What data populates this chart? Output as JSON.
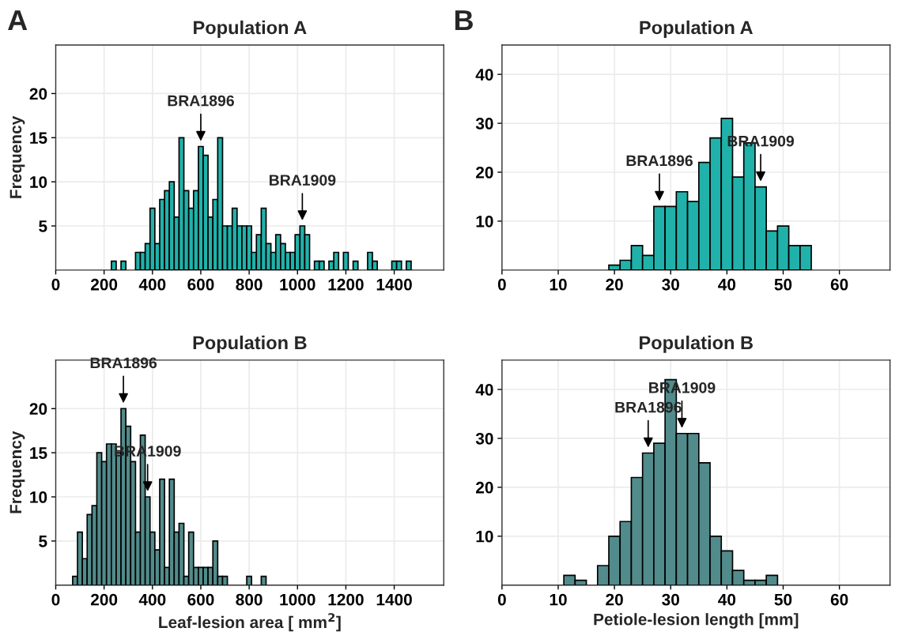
{
  "chart_data": [
    {
      "type": "histogram",
      "title": "Population A",
      "ylabel": "Frequency",
      "color": "#20b2aa",
      "bins": [
        230,
        250,
        270,
        290,
        310,
        330,
        350,
        370,
        390,
        410,
        430,
        450,
        470,
        490,
        510,
        530,
        550,
        570,
        590,
        610,
        630,
        650,
        670,
        690,
        710,
        730,
        750,
        770,
        790,
        810,
        830,
        850,
        870,
        890,
        910,
        930,
        950,
        970,
        990,
        1010,
        1030,
        1050,
        1070,
        1090,
        1110,
        1130,
        1150,
        1170,
        1190,
        1210,
        1230,
        1250,
        1270,
        1290,
        1310,
        1330,
        1350,
        1370,
        1390,
        1410,
        1430,
        1450,
        1470
      ],
      "values": [
        1,
        0,
        1,
        0,
        0,
        2,
        2,
        3,
        7,
        3,
        8,
        9,
        10,
        6,
        15,
        9,
        7,
        9,
        14,
        13,
        6,
        8,
        15,
        5,
        5,
        7,
        5,
        5,
        5,
        2,
        4,
        7,
        3,
        2,
        4,
        3,
        2,
        2,
        4,
        5,
        4,
        0,
        1,
        1,
        0,
        1,
        2,
        0,
        2,
        0,
        1,
        0,
        0,
        2,
        1,
        0,
        0,
        0,
        1,
        1,
        0,
        1
      ],
      "xlim": [
        0,
        1605
      ],
      "ylim": [
        0,
        25.5
      ],
      "xticks": [
        0,
        200,
        400,
        600,
        800,
        1000,
        1200,
        1400
      ],
      "yticks": [
        5,
        10,
        15,
        20
      ],
      "grid": true,
      "annotations": [
        "A",
        {
          "text": "BRA1896",
          "x": 600,
          "y": 14
        },
        {
          "text": "BRA1909",
          "x": 1020,
          "y": 5
        }
      ]
    },
    {
      "type": "histogram",
      "title": "Population A",
      "color": "#20b2aa",
      "bins": [
        19,
        21,
        23,
        25,
        27,
        29,
        31,
        33,
        35,
        37,
        39,
        41,
        43,
        45,
        47,
        49,
        51,
        53,
        55
      ],
      "values": [
        1,
        2,
        5,
        3,
        13,
        13,
        16,
        14,
        22,
        27,
        31,
        19,
        26,
        17,
        8,
        9,
        5,
        5
      ],
      "xlim": [
        0,
        69
      ],
      "ylim": [
        0,
        46
      ],
      "xticks": [
        0,
        10,
        20,
        30,
        40,
        50,
        60
      ],
      "yticks": [
        10,
        20,
        30,
        40
      ],
      "grid": true,
      "annotations": [
        "B",
        {
          "text": "BRA1896",
          "x": 28,
          "y": 13
        },
        {
          "text": "BRA1909",
          "x": 46,
          "y": 17
        }
      ]
    },
    {
      "type": "histogram",
      "title": "Population B",
      "ylabel": "Frequency",
      "xlabel": "Leaf-lesion area [ mm$^{2}$]",
      "color": "#528b8b",
      "bins": [
        70,
        90,
        110,
        130,
        150,
        170,
        190,
        210,
        230,
        250,
        270,
        290,
        310,
        330,
        350,
        370,
        390,
        410,
        430,
        450,
        470,
        490,
        510,
        530,
        550,
        570,
        590,
        610,
        630,
        650,
        670,
        690,
        710,
        730,
        750,
        770,
        790,
        810,
        830,
        850,
        870
      ],
      "values": [
        1,
        6,
        3,
        8,
        9,
        15,
        14,
        16,
        16,
        15,
        20,
        18,
        14,
        6,
        17,
        10,
        6,
        4,
        12,
        2,
        12,
        6,
        7,
        1,
        6,
        2,
        2,
        2,
        2,
        5,
        1,
        1,
        0,
        0,
        0,
        0,
        1,
        0,
        0,
        1
      ],
      "xlim": [
        0,
        1605
      ],
      "ylim": [
        0,
        25.5
      ],
      "xticks": [
        0,
        200,
        400,
        600,
        800,
        1000,
        1200,
        1400
      ],
      "yticks": [
        5,
        10,
        15,
        20
      ],
      "grid": true,
      "annotations": [
        {
          "text": "BRA1896",
          "x": 280,
          "y": 20
        },
        {
          "text": "BRA1909",
          "x": 380,
          "y": 10
        }
      ]
    },
    {
      "type": "histogram",
      "title": "Population B",
      "xlabel": "Petiole-lesion length [mm]",
      "color": "#528b8b",
      "bins": [
        11,
        13,
        15,
        17,
        19,
        21,
        23,
        25,
        27,
        29,
        31,
        33,
        35,
        37,
        39,
        41,
        43,
        45,
        47,
        49
      ],
      "values": [
        2,
        1,
        0,
        4,
        10,
        13,
        22,
        27,
        29,
        42,
        31,
        31,
        25,
        10,
        7,
        3,
        1,
        1,
        2
      ],
      "xlim": [
        0,
        69
      ],
      "ylim": [
        0,
        46
      ],
      "xticks": [
        0,
        10,
        20,
        30,
        40,
        50,
        60
      ],
      "yticks": [
        10,
        20,
        30,
        40
      ],
      "grid": true,
      "annotations": [
        {
          "text": "BRA1896",
          "x": 26,
          "y": 27
        },
        {
          "text": "BRA1909",
          "x": 32,
          "y": 31
        }
      ]
    }
  ]
}
